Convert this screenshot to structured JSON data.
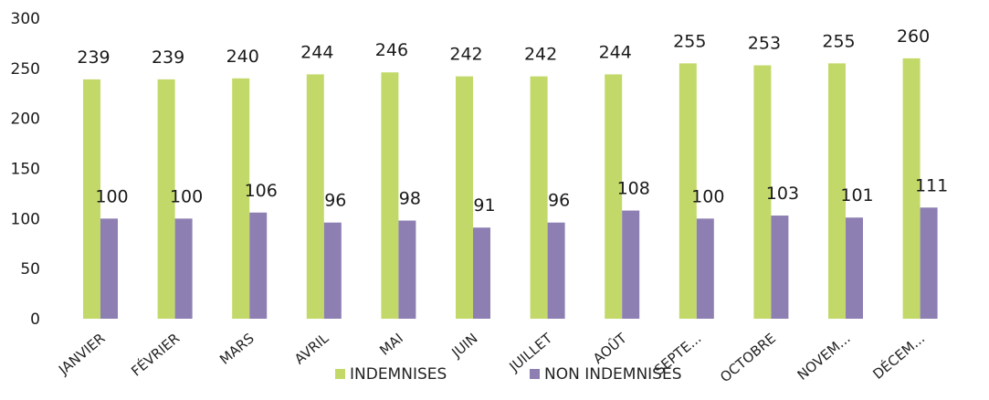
{
  "chart_data": {
    "type": "bar",
    "categories": [
      "JANVIER",
      "FÉVRIER",
      "MARS",
      "AVRIL",
      "MAI",
      "JUIN",
      "JUILLET",
      "AOÛT",
      "SEPTE...",
      "OCTOBRE",
      "NOVEM...",
      "DÉCEM..."
    ],
    "series": [
      {
        "name": "INDEMNISES",
        "values": [
          239,
          239,
          240,
          244,
          246,
          242,
          242,
          244,
          255,
          253,
          255,
          260
        ],
        "color": "#c2d96a"
      },
      {
        "name": "NON INDEMNISES",
        "values": [
          100,
          100,
          106,
          96,
          98,
          91,
          96,
          108,
          100,
          103,
          101,
          111
        ],
        "color": "#8e7fb3"
      }
    ],
    "ylim": [
      0,
      300
    ],
    "yticks": [
      0,
      50,
      100,
      150,
      200,
      250,
      300
    ],
    "grid": false,
    "legend": "bottom",
    "data_labels": true
  }
}
